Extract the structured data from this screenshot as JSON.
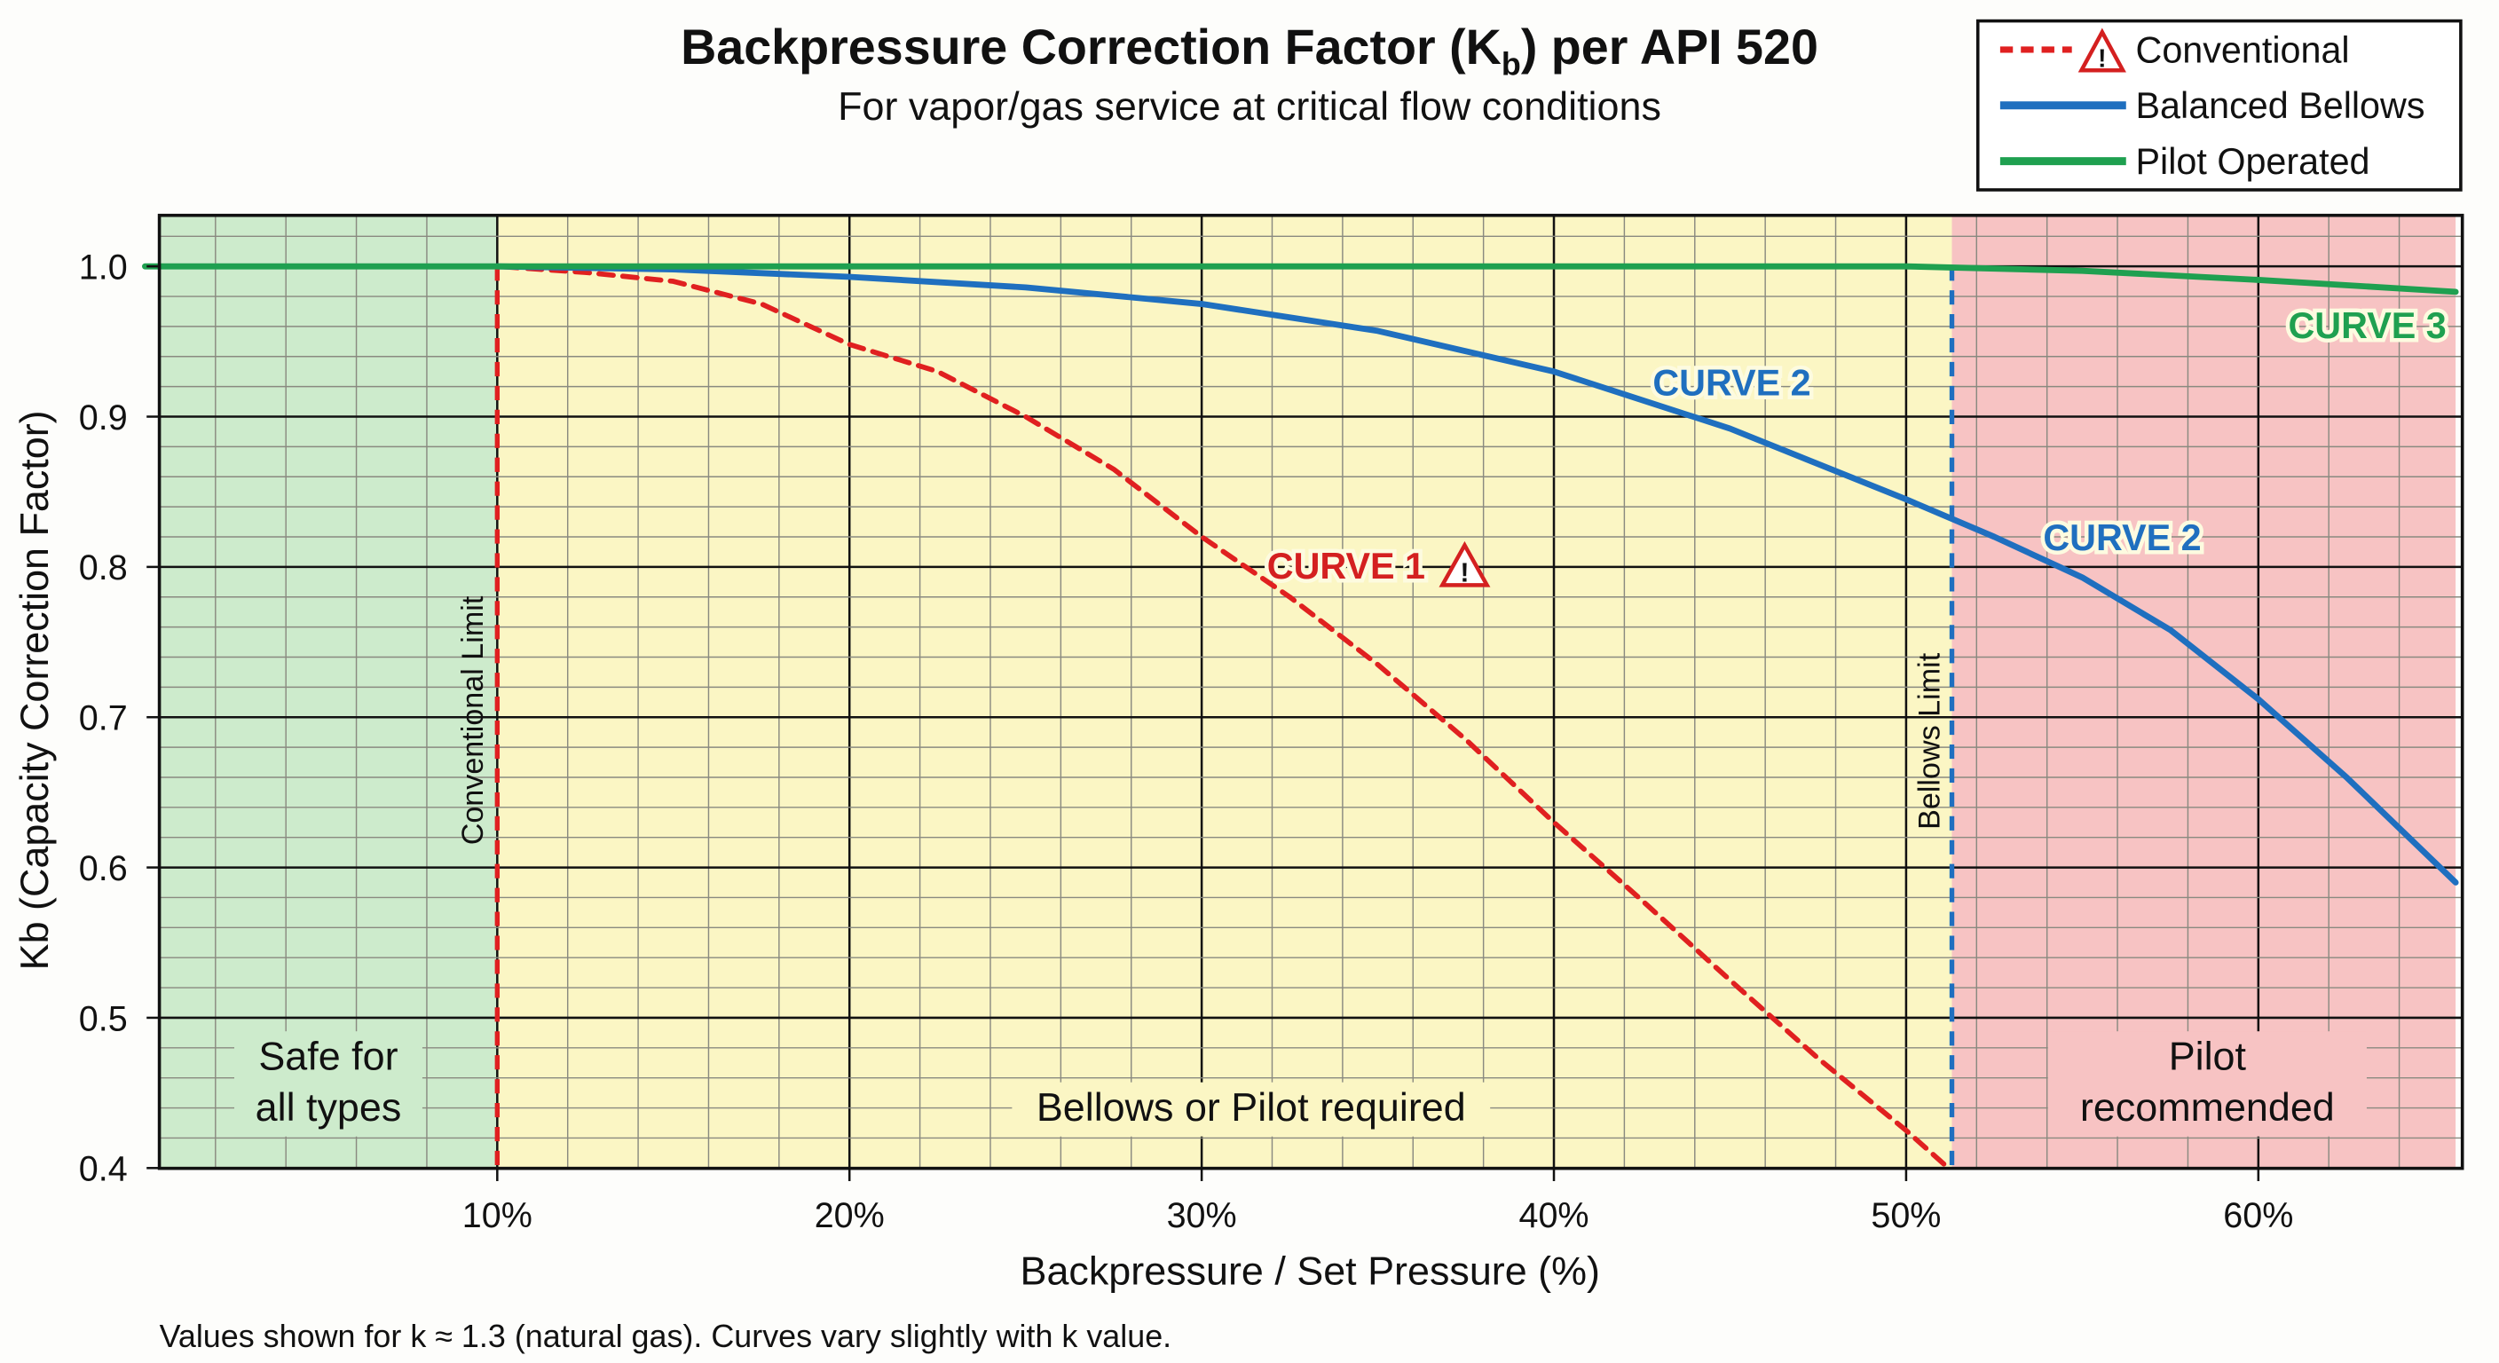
{
  "chart_data": {
    "type": "line",
    "title": "Backpressure Correction Factor (K",
    "title_sub": "b",
    "title_tail": ") per API 520",
    "subtitle": "For vapor/gas service at critical flow conditions",
    "xlabel": "Backpressure / Set Pressure (%)",
    "ylabel": "Kb (Capacity Correction Factor)",
    "xlim": [
      0,
      65.6
    ],
    "ylim": [
      0.4,
      1.035
    ],
    "xticks": [
      10,
      20,
      30,
      40,
      50,
      60
    ],
    "xtick_labels": [
      "10%",
      "20%",
      "30%",
      "40%",
      "50%",
      "60%"
    ],
    "yticks": [
      1.0,
      0.9,
      0.8,
      0.7,
      0.6,
      0.5,
      0.4
    ],
    "ytick_labels": [
      "1.0",
      "0.9",
      "0.8",
      "0.7",
      "0.6",
      "0.5",
      "0.4"
    ],
    "grid": true,
    "legend_position": "top-right",
    "series": [
      {
        "name": "Conventional",
        "color": "#e02020",
        "style": "dashed",
        "warning_icon": "warning-triangle-icon",
        "x": [
          0,
          10,
          12.5,
          15,
          17.5,
          20,
          22.5,
          25,
          27.5,
          30,
          32.5,
          35,
          37.5,
          40,
          42.5,
          45,
          47.5,
          50,
          51.2
        ],
        "y": [
          1.0,
          1.0,
          0.996,
          0.99,
          0.975,
          0.948,
          0.93,
          0.9,
          0.865,
          0.82,
          0.78,
          0.735,
          0.685,
          0.63,
          0.578,
          0.525,
          0.473,
          0.425,
          0.4
        ]
      },
      {
        "name": "Balanced Bellows",
        "color": "#1f6fbf",
        "style": "solid",
        "x": [
          10,
          15,
          20,
          25,
          30,
          35,
          40,
          45,
          50,
          52.5,
          55,
          57.5,
          60,
          62.5,
          65.6
        ],
        "y": [
          1.0,
          0.998,
          0.993,
          0.986,
          0.975,
          0.957,
          0.93,
          0.892,
          0.845,
          0.82,
          0.793,
          0.758,
          0.712,
          0.66,
          0.59
        ]
      },
      {
        "name": "Pilot Operated",
        "color": "#1fa050",
        "style": "solid",
        "x": [
          0,
          10,
          30,
          50,
          55,
          60,
          65.6
        ],
        "y": [
          1.0,
          1.0,
          1.0,
          1.0,
          0.997,
          0.991,
          0.983
        ]
      }
    ],
    "zones": [
      {
        "from": 0,
        "to": 10,
        "color": "#cdebcc",
        "label_lines": [
          "Safe for",
          "all types"
        ]
      },
      {
        "from": 10,
        "to": 51.3,
        "color": "#fbf6c4",
        "label_lines": [
          "Bellows or Pilot required"
        ]
      },
      {
        "from": 51.3,
        "to": 65.6,
        "color": "#f7c3c3",
        "label_lines": [
          "Pilot",
          "recommended"
        ]
      }
    ],
    "limits": [
      {
        "x": 10,
        "label": "Conventional Limit",
        "color": "#e02020"
      },
      {
        "x": 51.3,
        "label": "Bellows Limit",
        "color": "#1f6fbf"
      }
    ],
    "annotations": [
      {
        "text": "CURVE 1",
        "color": "#d42020",
        "warning_icon": true
      },
      {
        "text": "CURVE 2",
        "color": "#1f6fbf"
      },
      {
        "text": "CURVE 2",
        "color": "#1f6fbf"
      },
      {
        "text": "CURVE 3",
        "color": "#1fa050"
      }
    ],
    "footnote": "Values shown for k ≈ 1.3 (natural gas).  Curves vary slightly with k value."
  }
}
